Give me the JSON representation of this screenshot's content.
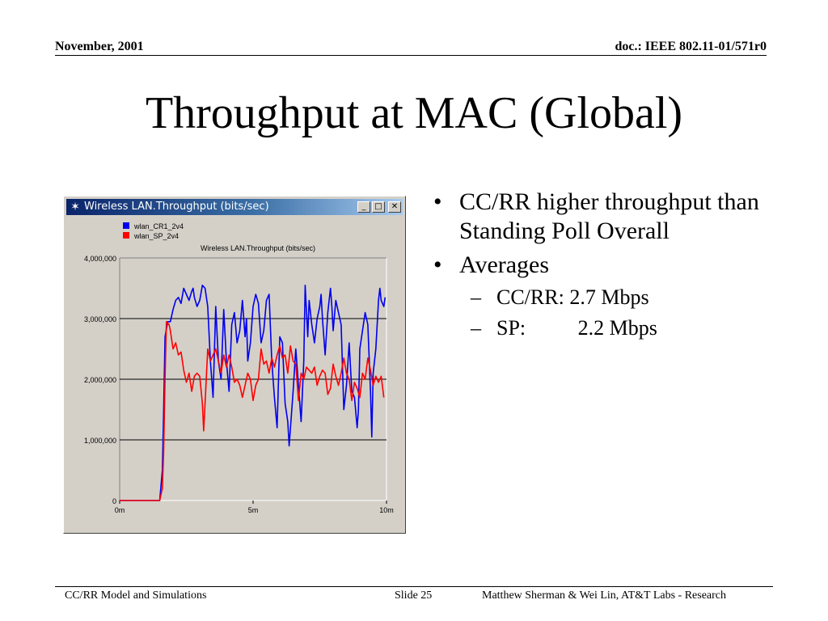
{
  "header": {
    "left": "November, 2001",
    "right": "doc.: IEEE 802.11-01/571r0"
  },
  "slide_title": "Throughput at MAC (Global)",
  "window": {
    "title": "Wireless LAN.Throughput (bits/sec)",
    "icon": "star-icon",
    "buttons": [
      "minimize",
      "maximize",
      "close"
    ]
  },
  "bullets": {
    "b1": "CC/RR higher throughput than Standing Poll Overall",
    "b2": "Averages",
    "sub1": {
      "label": "CC/RR:",
      "value": "2.7 Mbps"
    },
    "sub2": {
      "label": "SP:",
      "value": "2.2 Mbps"
    }
  },
  "footer": {
    "left": "CC/RR Model and Simulations",
    "center": "Slide 25",
    "right": "Matthew Sherman & Wei Lin, AT&T Labs - Research"
  },
  "chart_data": {
    "type": "line",
    "title": "Wireless LAN.Throughput (bits/sec)",
    "xlabel": "",
    "ylabel": "",
    "xlim": [
      0,
      10
    ],
    "ylim": [
      0,
      4000000
    ],
    "x_ticks": [
      {
        "v": 0,
        "label": "0m"
      },
      {
        "v": 5,
        "label": "5m"
      },
      {
        "v": 10,
        "label": "10m"
      }
    ],
    "y_ticks": [
      {
        "v": 0,
        "label": "0"
      },
      {
        "v": 1000000,
        "label": "1,000,000"
      },
      {
        "v": 2000000,
        "label": "2,000,000"
      },
      {
        "v": 3000000,
        "label": "3,000,000"
      },
      {
        "v": 4000000,
        "label": "4,000,000"
      }
    ],
    "grid": "horizontal",
    "legend": "top-left",
    "series": [
      {
        "name": "wlan_CR1_2v4",
        "color": "#0000ee",
        "points": [
          [
            0,
            0
          ],
          [
            1.0,
            0
          ],
          [
            1.5,
            0
          ],
          [
            1.6,
            500000
          ],
          [
            1.65,
            1500000
          ],
          [
            1.7,
            2700000
          ],
          [
            1.8,
            2950000
          ],
          [
            1.9,
            2950000
          ],
          [
            2.0,
            3150000
          ],
          [
            2.1,
            3300000
          ],
          [
            2.2,
            3350000
          ],
          [
            2.3,
            3250000
          ],
          [
            2.4,
            3500000
          ],
          [
            2.5,
            3400000
          ],
          [
            2.6,
            3300000
          ],
          [
            2.7,
            3450000
          ],
          [
            2.75,
            3500000
          ],
          [
            2.8,
            3350000
          ],
          [
            2.9,
            3200000
          ],
          [
            3.0,
            3300000
          ],
          [
            3.1,
            3550000
          ],
          [
            3.2,
            3500000
          ],
          [
            3.3,
            3200000
          ],
          [
            3.4,
            2300000
          ],
          [
            3.5,
            1700000
          ],
          [
            3.6,
            3200000
          ],
          [
            3.7,
            2300000
          ],
          [
            3.8,
            2000000
          ],
          [
            3.9,
            3150000
          ],
          [
            4.0,
            2300000
          ],
          [
            4.1,
            1800000
          ],
          [
            4.2,
            2900000
          ],
          [
            4.3,
            3100000
          ],
          [
            4.4,
            2600000
          ],
          [
            4.5,
            2800000
          ],
          [
            4.6,
            3300000
          ],
          [
            4.7,
            2700000
          ],
          [
            4.75,
            3000000
          ],
          [
            4.8,
            2300000
          ],
          [
            4.9,
            2600000
          ],
          [
            5.0,
            3200000
          ],
          [
            5.1,
            3400000
          ],
          [
            5.2,
            3250000
          ],
          [
            5.3,
            2600000
          ],
          [
            5.4,
            2800000
          ],
          [
            5.5,
            3300000
          ],
          [
            5.6,
            3400000
          ],
          [
            5.7,
            2300000
          ],
          [
            5.8,
            1700000
          ],
          [
            5.9,
            1200000
          ],
          [
            6.0,
            2700000
          ],
          [
            6.1,
            2600000
          ],
          [
            6.2,
            1600000
          ],
          [
            6.3,
            1300000
          ],
          [
            6.35,
            900000
          ],
          [
            6.5,
            1800000
          ],
          [
            6.6,
            2500000
          ],
          [
            6.7,
            1900000
          ],
          [
            6.8,
            1300000
          ],
          [
            6.9,
            2300000
          ],
          [
            6.95,
            3550000
          ],
          [
            7.05,
            2700000
          ],
          [
            7.1,
            3300000
          ],
          [
            7.2,
            2900000
          ],
          [
            7.3,
            2600000
          ],
          [
            7.4,
            3000000
          ],
          [
            7.5,
            3200000
          ],
          [
            7.55,
            3400000
          ],
          [
            7.6,
            3000000
          ],
          [
            7.7,
            2400000
          ],
          [
            7.8,
            3100000
          ],
          [
            7.9,
            3500000
          ],
          [
            7.95,
            3200000
          ],
          [
            8.0,
            2800000
          ],
          [
            8.1,
            3300000
          ],
          [
            8.2,
            3100000
          ],
          [
            8.3,
            2900000
          ],
          [
            8.4,
            1500000
          ],
          [
            8.5,
            1900000
          ],
          [
            8.6,
            2600000
          ],
          [
            8.7,
            1800000
          ],
          [
            8.8,
            1700000
          ],
          [
            8.9,
            1200000
          ],
          [
            8.95,
            1500000
          ],
          [
            9.0,
            2500000
          ],
          [
            9.1,
            2800000
          ],
          [
            9.2,
            3100000
          ],
          [
            9.3,
            2900000
          ],
          [
            9.4,
            1800000
          ],
          [
            9.45,
            1050000
          ],
          [
            9.5,
            2100000
          ],
          [
            9.6,
            2500000
          ],
          [
            9.7,
            3300000
          ],
          [
            9.75,
            3500000
          ],
          [
            9.8,
            3300000
          ],
          [
            9.9,
            3200000
          ],
          [
            9.95,
            3350000
          ]
        ]
      },
      {
        "name": "wlan_SP_2v4",
        "color": "#ff0000",
        "points": [
          [
            0,
            0
          ],
          [
            1.0,
            0
          ],
          [
            1.5,
            0
          ],
          [
            1.6,
            200000
          ],
          [
            1.65,
            800000
          ],
          [
            1.7,
            2000000
          ],
          [
            1.75,
            2950000
          ],
          [
            1.85,
            2900000
          ],
          [
            1.9,
            2800000
          ],
          [
            2.0,
            2500000
          ],
          [
            2.1,
            2600000
          ],
          [
            2.2,
            2400000
          ],
          [
            2.3,
            2450000
          ],
          [
            2.4,
            2150000
          ],
          [
            2.5,
            1950000
          ],
          [
            2.6,
            2100000
          ],
          [
            2.7,
            1800000
          ],
          [
            2.8,
            2050000
          ],
          [
            2.9,
            2100000
          ],
          [
            3.0,
            2050000
          ],
          [
            3.1,
            1600000
          ],
          [
            3.15,
            1150000
          ],
          [
            3.2,
            1600000
          ],
          [
            3.3,
            2500000
          ],
          [
            3.4,
            2300000
          ],
          [
            3.5,
            2400000
          ],
          [
            3.6,
            2500000
          ],
          [
            3.7,
            2300000
          ],
          [
            3.8,
            2100000
          ],
          [
            3.9,
            2400000
          ],
          [
            4.0,
            2200000
          ],
          [
            4.1,
            2400000
          ],
          [
            4.2,
            2200000
          ],
          [
            4.3,
            1950000
          ],
          [
            4.4,
            2000000
          ],
          [
            4.5,
            1900000
          ],
          [
            4.6,
            1700000
          ],
          [
            4.7,
            1900000
          ],
          [
            4.8,
            2100000
          ],
          [
            4.9,
            2000000
          ],
          [
            5.0,
            1650000
          ],
          [
            5.1,
            1900000
          ],
          [
            5.2,
            2000000
          ],
          [
            5.3,
            2500000
          ],
          [
            5.4,
            2250000
          ],
          [
            5.5,
            2300000
          ],
          [
            5.6,
            2100000
          ],
          [
            5.7,
            2350000
          ],
          [
            5.8,
            2200000
          ],
          [
            5.9,
            2400000
          ],
          [
            6.0,
            2550000
          ],
          [
            6.1,
            2350000
          ],
          [
            6.2,
            2400000
          ],
          [
            6.3,
            2100000
          ],
          [
            6.4,
            2550000
          ],
          [
            6.5,
            2300000
          ],
          [
            6.6,
            2250000
          ],
          [
            6.7,
            1650000
          ],
          [
            6.8,
            2100000
          ],
          [
            6.9,
            2000000
          ],
          [
            7.0,
            2200000
          ],
          [
            7.1,
            2150000
          ],
          [
            7.2,
            2100000
          ],
          [
            7.3,
            2200000
          ],
          [
            7.4,
            1900000
          ],
          [
            7.5,
            2050000
          ],
          [
            7.6,
            2150000
          ],
          [
            7.7,
            2100000
          ],
          [
            7.8,
            1750000
          ],
          [
            7.9,
            1850000
          ],
          [
            8.0,
            2250000
          ],
          [
            8.1,
            2050000
          ],
          [
            8.2,
            1900000
          ],
          [
            8.3,
            2100000
          ],
          [
            8.4,
            2350000
          ],
          [
            8.5,
            2100000
          ],
          [
            8.6,
            2000000
          ],
          [
            8.7,
            1650000
          ],
          [
            8.8,
            1950000
          ],
          [
            8.9,
            1850000
          ],
          [
            9.0,
            1700000
          ],
          [
            9.1,
            2100000
          ],
          [
            9.2,
            2000000
          ],
          [
            9.3,
            2350000
          ],
          [
            9.4,
            2150000
          ],
          [
            9.5,
            1900000
          ],
          [
            9.6,
            2050000
          ],
          [
            9.7,
            1950000
          ],
          [
            9.8,
            2050000
          ],
          [
            9.9,
            1700000
          ]
        ]
      }
    ]
  }
}
